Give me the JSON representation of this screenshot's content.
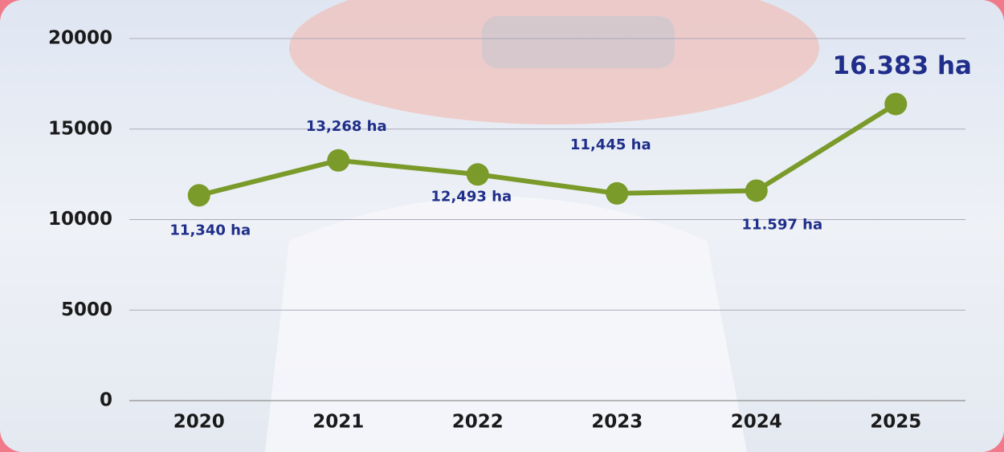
{
  "chart_data": {
    "type": "line",
    "categories": [
      "2020",
      "2021",
      "2022",
      "2023",
      "2024",
      "2025"
    ],
    "values": [
      11340,
      13268,
      12493,
      11445,
      11597,
      16383
    ],
    "value_labels": [
      "11,340 ha",
      "13,268 ha",
      "12,493 ha",
      "11,445 ha",
      "11.597 ha",
      "16.383 ha"
    ],
    "color": "#7a9a2a",
    "ylim": [
      0,
      20000
    ],
    "yticks": [
      0,
      5000,
      10000,
      15000,
      20000
    ],
    "grid": true
  }
}
